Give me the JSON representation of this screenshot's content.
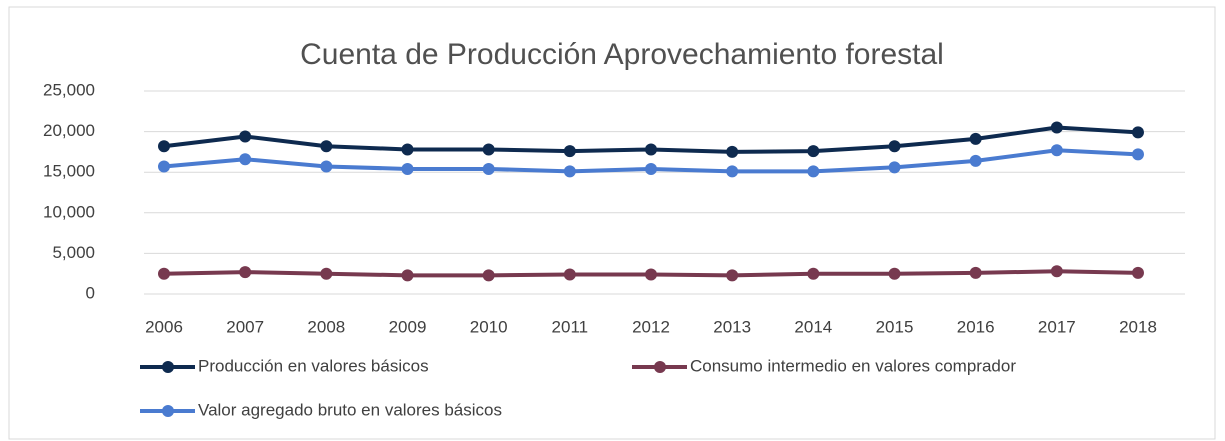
{
  "chart_data": {
    "type": "line",
    "title": "Cuenta de Producción Aprovechamiento forestal",
    "categories": [
      "2006",
      "2007",
      "2008",
      "2009",
      "2010",
      "2011",
      "2012",
      "2013",
      "2014",
      "2015",
      "2016",
      "2017",
      "2018"
    ],
    "series": [
      {
        "name": "Producción en valores básicos",
        "color": "#0e2a4f",
        "values": [
          18200,
          19400,
          18200,
          17800,
          17800,
          17600,
          17800,
          17500,
          17600,
          18200,
          19100,
          20500,
          19900
        ]
      },
      {
        "name": "Consumo intermedio en valores comprador",
        "color": "#77394f",
        "values": [
          2500,
          2700,
          2500,
          2300,
          2300,
          2400,
          2400,
          2300,
          2500,
          2500,
          2600,
          2800,
          2600
        ]
      },
      {
        "name": "Valor agregado bruto en valores básicos",
        "color": "#4a7bd0",
        "values": [
          15700,
          16600,
          15700,
          15400,
          15400,
          15100,
          15400,
          15100,
          15100,
          15600,
          16400,
          17700,
          17200
        ]
      }
    ],
    "ylim": [
      0,
      25000
    ],
    "yticks": [
      0,
      {
        "value": 5000,
        "label": "5,000"
      },
      {
        "value": 10000,
        "label": "10,000"
      },
      {
        "value": 15000,
        "label": "15,000"
      },
      {
        "value": 20000,
        "label": "20,000"
      },
      {
        "value": 25000,
        "label": "25,000"
      }
    ],
    "grid": true
  }
}
